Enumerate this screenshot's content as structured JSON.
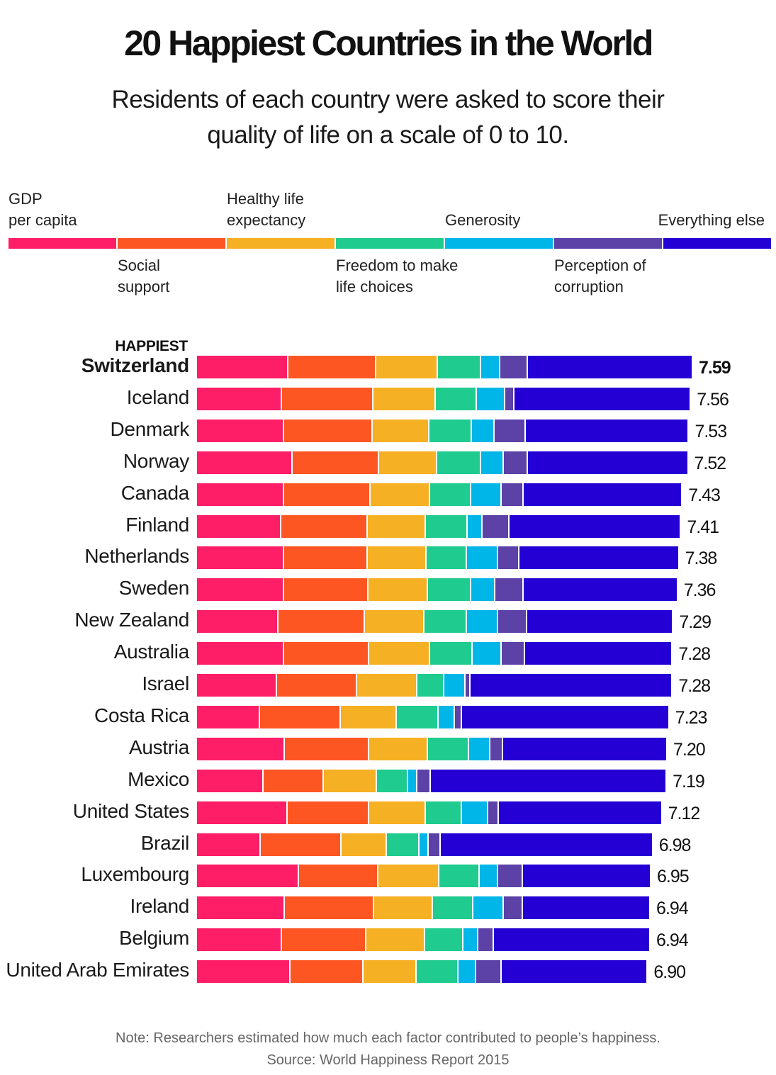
{
  "chart_data": {
    "type": "bar",
    "orientation": "horizontal",
    "stacked": true,
    "title": "20 Happiest Countries in the World",
    "subtitle": "Residents of each country were asked to score their quality of life on a scale of 0 to 10.",
    "xlabel": "",
    "ylabel": "",
    "xlim": [
      0,
      7.59
    ],
    "grid": false,
    "legend_position": "top",
    "top_label": "HAPPIEST",
    "categories": [
      "Switzerland",
      "Iceland",
      "Denmark",
      "Norway",
      "Canada",
      "Finland",
      "Netherlands",
      "Sweden",
      "New Zealand",
      "Australia",
      "Israel",
      "Costa Rica",
      "Austria",
      "Mexico",
      "United States",
      "Brazil",
      "Luxembourg",
      "Ireland",
      "Belgium",
      "United Arab Emirates"
    ],
    "totals": [
      "7.59",
      "7.56",
      "7.53",
      "7.52",
      "7.43",
      "7.41",
      "7.38",
      "7.36",
      "7.29",
      "7.28",
      "7.28",
      "7.23",
      "7.20",
      "7.19",
      "7.12",
      "6.98",
      "6.95",
      "6.94",
      "6.94",
      "6.90"
    ],
    "series": [
      {
        "name": "GDP per capita",
        "color": "#fe1d67",
        "values": [
          1.4,
          1.3,
          1.33,
          1.46,
          1.33,
          1.29,
          1.33,
          1.33,
          1.25,
          1.33,
          1.23,
          0.96,
          1.34,
          1.02,
          1.39,
          0.98,
          1.56,
          1.34,
          1.3,
          1.43
        ]
      },
      {
        "name": "Social support",
        "color": "#fe5623",
        "values": [
          1.34,
          1.4,
          1.36,
          1.33,
          1.33,
          1.32,
          1.28,
          1.29,
          1.32,
          1.31,
          1.22,
          1.24,
          1.3,
          0.92,
          1.25,
          1.23,
          1.22,
          1.37,
          1.29,
          1.12
        ]
      },
      {
        "name": "Healthy life expectancy",
        "color": "#f6b023",
        "values": [
          0.95,
          0.95,
          0.87,
          0.89,
          0.91,
          0.89,
          0.9,
          0.92,
          0.91,
          0.93,
          0.92,
          0.86,
          0.9,
          0.81,
          0.86,
          0.7,
          0.93,
          0.9,
          0.9,
          0.81
        ]
      },
      {
        "name": "Freedom to make life choices",
        "color": "#1fcb8e",
        "values": [
          0.66,
          0.63,
          0.65,
          0.67,
          0.63,
          0.64,
          0.62,
          0.66,
          0.65,
          0.65,
          0.41,
          0.64,
          0.62,
          0.48,
          0.55,
          0.49,
          0.62,
          0.62,
          0.59,
          0.64
        ]
      },
      {
        "name": "Generosity",
        "color": "#00b5e8",
        "values": [
          0.29,
          0.44,
          0.34,
          0.35,
          0.46,
          0.23,
          0.48,
          0.36,
          0.48,
          0.44,
          0.33,
          0.25,
          0.33,
          0.14,
          0.41,
          0.15,
          0.28,
          0.47,
          0.23,
          0.27
        ]
      },
      {
        "name": "Perception of corruption",
        "color": "#5c41a7",
        "values": [
          0.42,
          0.14,
          0.48,
          0.36,
          0.34,
          0.41,
          0.32,
          0.44,
          0.44,
          0.36,
          0.08,
          0.1,
          0.19,
          0.21,
          0.16,
          0.18,
          0.38,
          0.29,
          0.23,
          0.39
        ]
      },
      {
        "name": "Everything else",
        "color": "#2400d4",
        "values": [
          2.53,
          2.7,
          2.5,
          2.46,
          2.43,
          2.63,
          2.45,
          2.36,
          2.24,
          2.26,
          3.09,
          3.18,
          2.52,
          3.61,
          2.5,
          3.25,
          1.96,
          1.95,
          2.4,
          2.24
        ]
      }
    ],
    "legend_rows": {
      "above": [
        "GDP per capita",
        "Healthy life expectancy",
        "Generosity",
        "Everything else"
      ],
      "below": [
        "Social support",
        "Freedom to make life choices",
        "Perception of corruption"
      ]
    },
    "legend_labels": {
      "GDP per capita": "GDP\nper capita",
      "Social support": "Social\nsupport",
      "Healthy life expectancy": "Healthy life\nexpectancy",
      "Freedom to make life choices": "Freedom to make\nlife choices",
      "Generosity": "Generosity",
      "Perception of corruption": "Perception of\ncorruption",
      "Everything else": "Everything else"
    },
    "note": "Note: Researchers estimated how much each factor contributed to people’s happiness.",
    "source": "Source: World Happiness Report 2015"
  }
}
